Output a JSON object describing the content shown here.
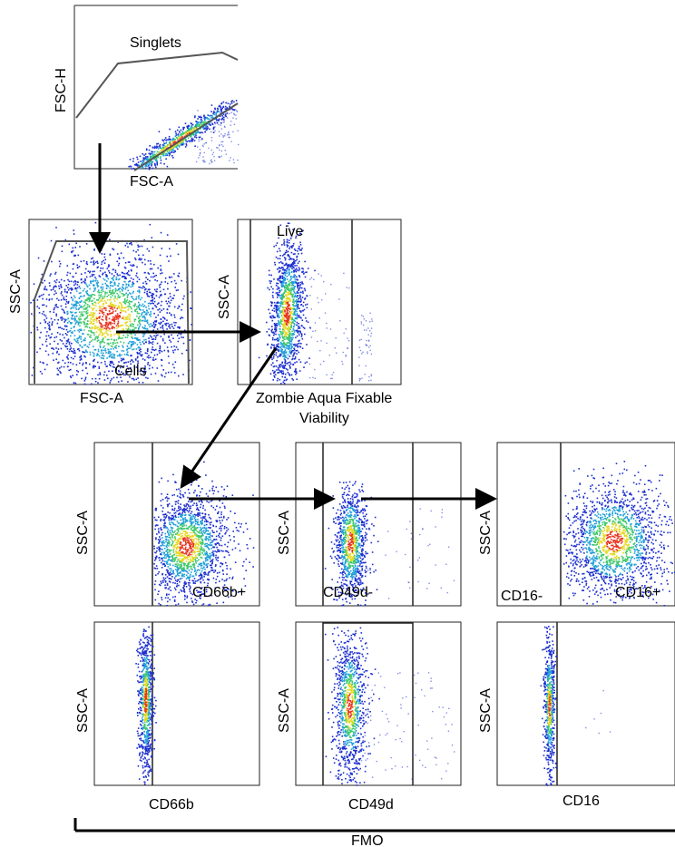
{
  "panels": {
    "singlets": {
      "ylabel": "FSC-H",
      "xlabel": "FSC-A",
      "gate": "Singlets"
    },
    "cells": {
      "ylabel": "SSC-A",
      "xlabel": "FSC-A",
      "gate": "Cells"
    },
    "live": {
      "ylabel": "SSC-A",
      "xlabel_line1": "Zombie Aqua Fixable",
      "xlabel_line2": "Viability",
      "gate": "Live"
    },
    "cd66b": {
      "ylabel": "SSC-A",
      "gate": "CD66b+"
    },
    "cd49d": {
      "ylabel": "SSC-A",
      "gate": "CD49d-"
    },
    "cd16": {
      "ylabel": "SSC-A",
      "gate_left": "CD16-",
      "gate_right": "CD16+"
    },
    "fmo_cd66b": {
      "ylabel": "SSC-A",
      "xlabel": "CD66b"
    },
    "fmo_cd49d": {
      "ylabel": "SSC-A",
      "xlabel": "CD49d"
    },
    "fmo_cd16": {
      "ylabel": "SSC-A",
      "xlabel": "CD16"
    }
  },
  "fmo_label": "FMO",
  "colors": {
    "outer": "#1c2fcf",
    "mid1": "#1f9fd8",
    "mid2": "#3ec96a",
    "mid3": "#e6d825",
    "core": "#e8321e"
  }
}
